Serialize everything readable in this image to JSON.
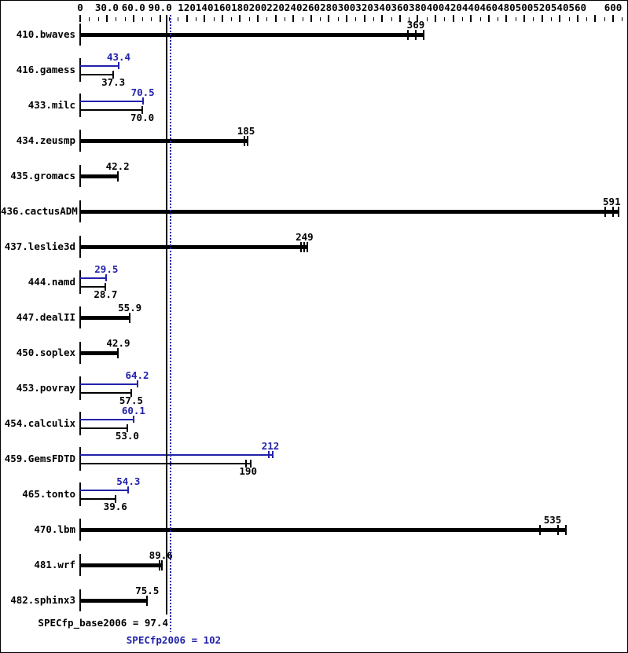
{
  "colors": {
    "base": "#000000",
    "peak": "#2222aa",
    "background": "#ffffff",
    "border": "#000000"
  },
  "axis": {
    "labeled_ticks": [
      {
        "v": 0,
        "label": "0"
      },
      {
        "v": 30,
        "label": "30.0"
      },
      {
        "v": 60,
        "label": "60.0"
      },
      {
        "v": 90,
        "label": "90.0"
      },
      {
        "v": 120,
        "label": "120"
      },
      {
        "v": 140,
        "label": "140"
      },
      {
        "v": 160,
        "label": "160"
      },
      {
        "v": 180,
        "label": "180"
      },
      {
        "v": 200,
        "label": "200"
      },
      {
        "v": 220,
        "label": "220"
      },
      {
        "v": 240,
        "label": "240"
      },
      {
        "v": 260,
        "label": "260"
      },
      {
        "v": 280,
        "label": "280"
      },
      {
        "v": 300,
        "label": "300"
      },
      {
        "v": 320,
        "label": "320"
      },
      {
        "v": 340,
        "label": "340"
      },
      {
        "v": 360,
        "label": "360"
      },
      {
        "v": 380,
        "label": "380"
      },
      {
        "v": 400,
        "label": "400"
      },
      {
        "v": 420,
        "label": "420"
      },
      {
        "v": 440,
        "label": "440"
      },
      {
        "v": 460,
        "label": "460"
      },
      {
        "v": 480,
        "label": "480"
      },
      {
        "v": 500,
        "label": "500"
      },
      {
        "v": 520,
        "label": "520"
      },
      {
        "v": 540,
        "label": "540"
      },
      {
        "v": 560,
        "label": "560"
      },
      {
        "v": 600,
        "label": "600"
      }
    ],
    "unlabeled_major_ticks": [
      580
    ],
    "minor_step": 10,
    "min": 0,
    "max": 610,
    "position": "top",
    "grid": false,
    "legend": false
  },
  "chart_data": {
    "type": "bar",
    "orientation": "horizontal",
    "series": [
      {
        "name": "peak",
        "color": "#2222aa",
        "style": "thin-line"
      },
      {
        "name": "base",
        "color": "#000000",
        "style": "thick-line"
      }
    ],
    "benchmarks": [
      {
        "name": "410.bwaves",
        "base": 369,
        "base_label": "369",
        "peak": null,
        "peak_label": null,
        "base_tick_offsets": [
          0,
          10,
          20
        ]
      },
      {
        "name": "416.gamess",
        "base": 37.3,
        "base_label": "37.3",
        "peak": 43.4,
        "peak_label": "43.4",
        "base_tick_offsets": [
          0
        ],
        "peak_tick_offsets": [
          0
        ]
      },
      {
        "name": "433.milc",
        "base": 70.0,
        "base_label": "70.0",
        "peak": 70.5,
        "peak_label": "70.5",
        "base_tick_offsets": [
          0
        ],
        "peak_tick_offsets": [
          0
        ]
      },
      {
        "name": "434.zeusmp",
        "base": 185,
        "base_label": "185",
        "peak": null,
        "peak_label": null,
        "base_tick_offsets": [
          0,
          4
        ]
      },
      {
        "name": "435.gromacs",
        "base": 42.2,
        "base_label": "42.2",
        "peak": null,
        "peak_label": null,
        "base_tick_offsets": [
          0
        ]
      },
      {
        "name": "436.cactusADM",
        "base": 591,
        "base_label": "591",
        "peak": null,
        "peak_label": null,
        "base_tick_offsets": [
          0,
          10,
          17
        ]
      },
      {
        "name": "437.leslie3d",
        "base": 249,
        "base_label": "249",
        "peak": null,
        "peak_label": null,
        "base_tick_offsets": [
          0,
          4,
          8
        ]
      },
      {
        "name": "444.namd",
        "base": 28.7,
        "base_label": "28.7",
        "peak": 29.5,
        "peak_label": "29.5",
        "base_tick_offsets": [
          0
        ],
        "peak_tick_offsets": [
          0
        ]
      },
      {
        "name": "447.dealII",
        "base": 55.9,
        "base_label": "55.9",
        "peak": null,
        "peak_label": null,
        "base_tick_offsets": [
          0
        ]
      },
      {
        "name": "450.soplex",
        "base": 42.9,
        "base_label": "42.9",
        "peak": null,
        "peak_label": null,
        "base_tick_offsets": [
          0
        ]
      },
      {
        "name": "453.povray",
        "base": 57.5,
        "base_label": "57.5",
        "peak": 64.2,
        "peak_label": "64.2",
        "base_tick_offsets": [
          0
        ],
        "peak_tick_offsets": [
          0
        ]
      },
      {
        "name": "454.calculix",
        "base": 53.0,
        "base_label": "53.0",
        "peak": 60.1,
        "peak_label": "60.1",
        "base_tick_offsets": [
          0
        ],
        "peak_tick_offsets": [
          0
        ]
      },
      {
        "name": "459.GemsFDTD",
        "base": 190,
        "base_label": "190",
        "peak": 212,
        "peak_label": "212",
        "base_tick_offsets": [
          -4,
          2
        ],
        "peak_tick_offsets": [
          0,
          5
        ]
      },
      {
        "name": "465.tonto",
        "base": 39.6,
        "base_label": "39.6",
        "peak": 54.3,
        "peak_label": "54.3",
        "base_tick_offsets": [
          0
        ],
        "peak_tick_offsets": [
          0
        ]
      },
      {
        "name": "470.lbm",
        "base": 535,
        "base_label": "535",
        "peak": null,
        "peak_label": null,
        "base_tick_offsets": [
          -20,
          3,
          13
        ]
      },
      {
        "name": "481.wrf",
        "base": 89.6,
        "base_label": "89.6",
        "peak": null,
        "peak_label": null,
        "base_tick_offsets": [
          0,
          3
        ]
      },
      {
        "name": "482.sphinx3",
        "base": 75.5,
        "base_label": "75.5",
        "peak": null,
        "peak_label": null,
        "base_tick_offsets": [
          0
        ]
      }
    ],
    "summary": {
      "base": {
        "value": 97.4,
        "label": "SPECfp_base2006 = 97.4"
      },
      "peak": {
        "value": 102,
        "label": "SPECfp2006 = 102"
      }
    }
  }
}
